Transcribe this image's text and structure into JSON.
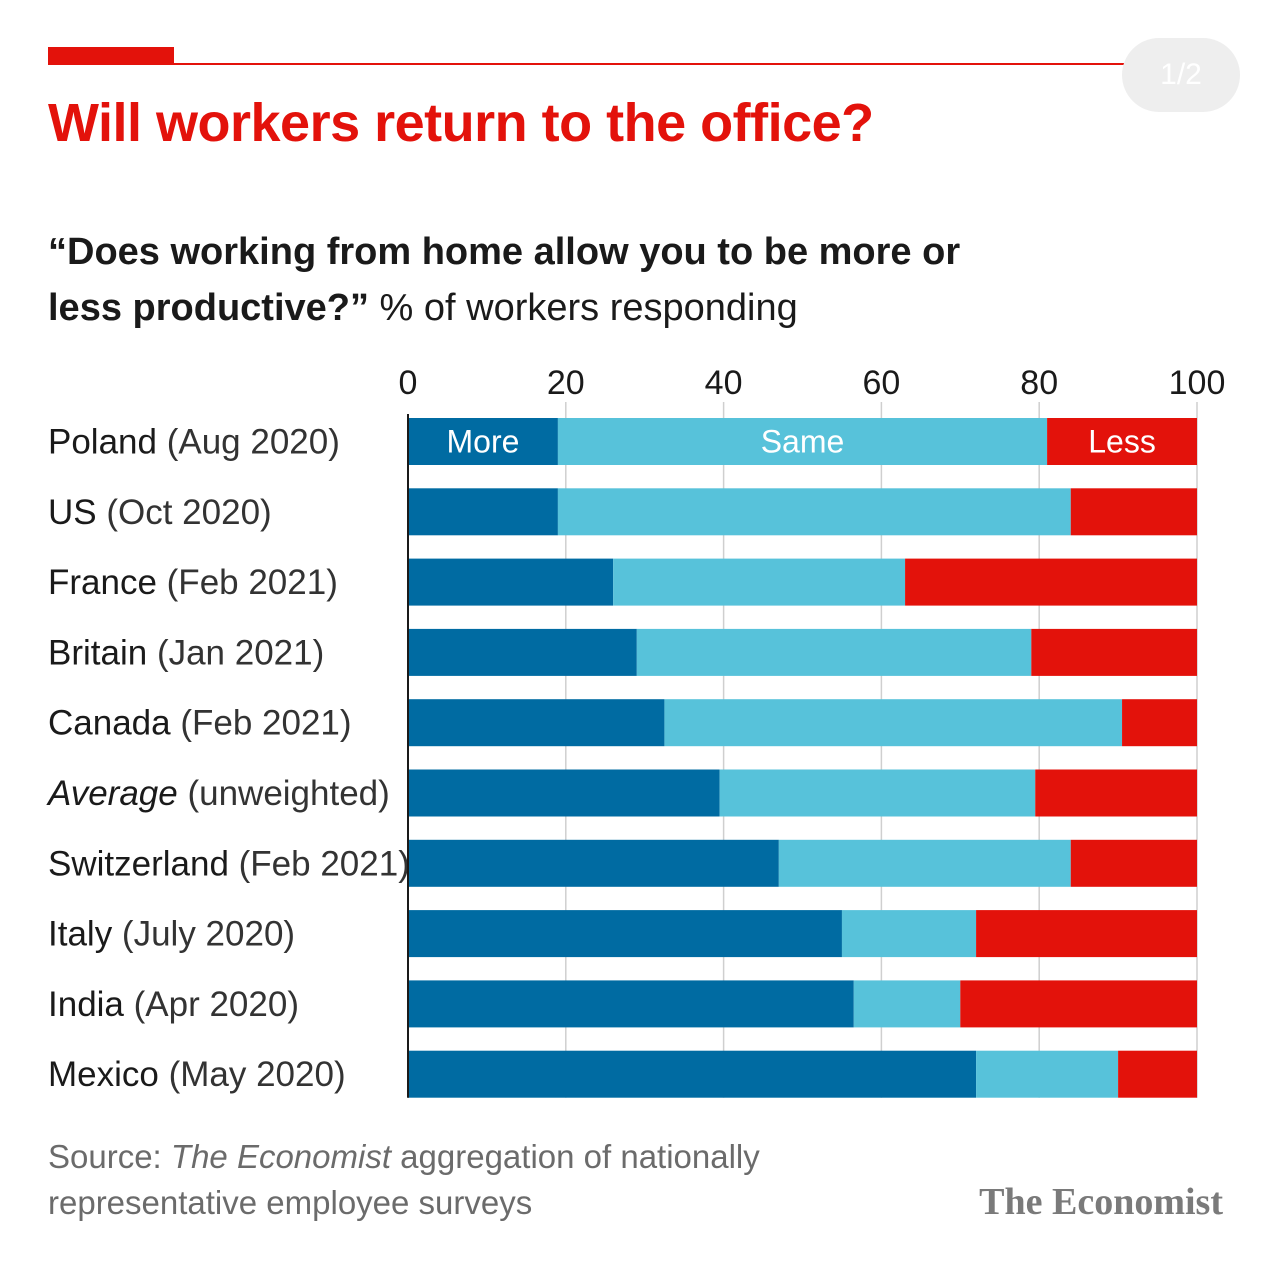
{
  "pager": "1/2",
  "header": {
    "title": "Will workers return to the office?",
    "subtitle_question": "“Does working from home allow you to be more or less productive?”",
    "subtitle_rest": " % of workers responding"
  },
  "footer": {
    "source_prefix": "Source: ",
    "source_italic": "The Economist",
    "source_rest": " aggregation of nationally representative employee surveys",
    "brand": "The Economist"
  },
  "colors": {
    "accent": "#e3120b",
    "more": "#006ba2",
    "same": "#57c2da",
    "less": "#e3120b",
    "grid": "#cfcfcf",
    "axis": "#1a1a1a"
  },
  "chart_data": {
    "type": "bar",
    "orientation": "horizontal",
    "stacked": true,
    "xlim": [
      0,
      100
    ],
    "xticks": [
      0,
      20,
      40,
      60,
      80,
      100
    ],
    "grid": true,
    "categories": [
      {
        "name": "Poland",
        "note": "(Aug 2020)",
        "italic": false
      },
      {
        "name": "US",
        "note": "(Oct 2020)",
        "italic": false
      },
      {
        "name": "France",
        "note": "(Feb 2021)",
        "italic": false
      },
      {
        "name": "Britain",
        "note": "(Jan 2021)",
        "italic": false
      },
      {
        "name": "Canada",
        "note": "(Feb 2021)",
        "italic": false
      },
      {
        "name": "Average",
        "note": "(unweighted)",
        "italic": true
      },
      {
        "name": "Switzerland",
        "note": "(Feb 2021)",
        "italic": false
      },
      {
        "name": "Italy",
        "note": "(July 2020)",
        "italic": false
      },
      {
        "name": "India",
        "note": "(Apr 2020)",
        "italic": false
      },
      {
        "name": "Mexico",
        "note": "(May 2020)",
        "italic": false
      }
    ],
    "series": [
      {
        "name": "More",
        "color": "#006ba2",
        "values": [
          19,
          19,
          26,
          29,
          32.5,
          39.5,
          47,
          55,
          56.5,
          72
        ]
      },
      {
        "name": "Same",
        "color": "#57c2da",
        "values": [
          62,
          65,
          37,
          50,
          58,
          40,
          37,
          17,
          13.5,
          18
        ]
      },
      {
        "name": "Less",
        "color": "#e3120b",
        "values": [
          19,
          16,
          37,
          21,
          9.5,
          20.5,
          16,
          28,
          30,
          10
        ]
      }
    ],
    "inline_series_labels_row": 0
  }
}
